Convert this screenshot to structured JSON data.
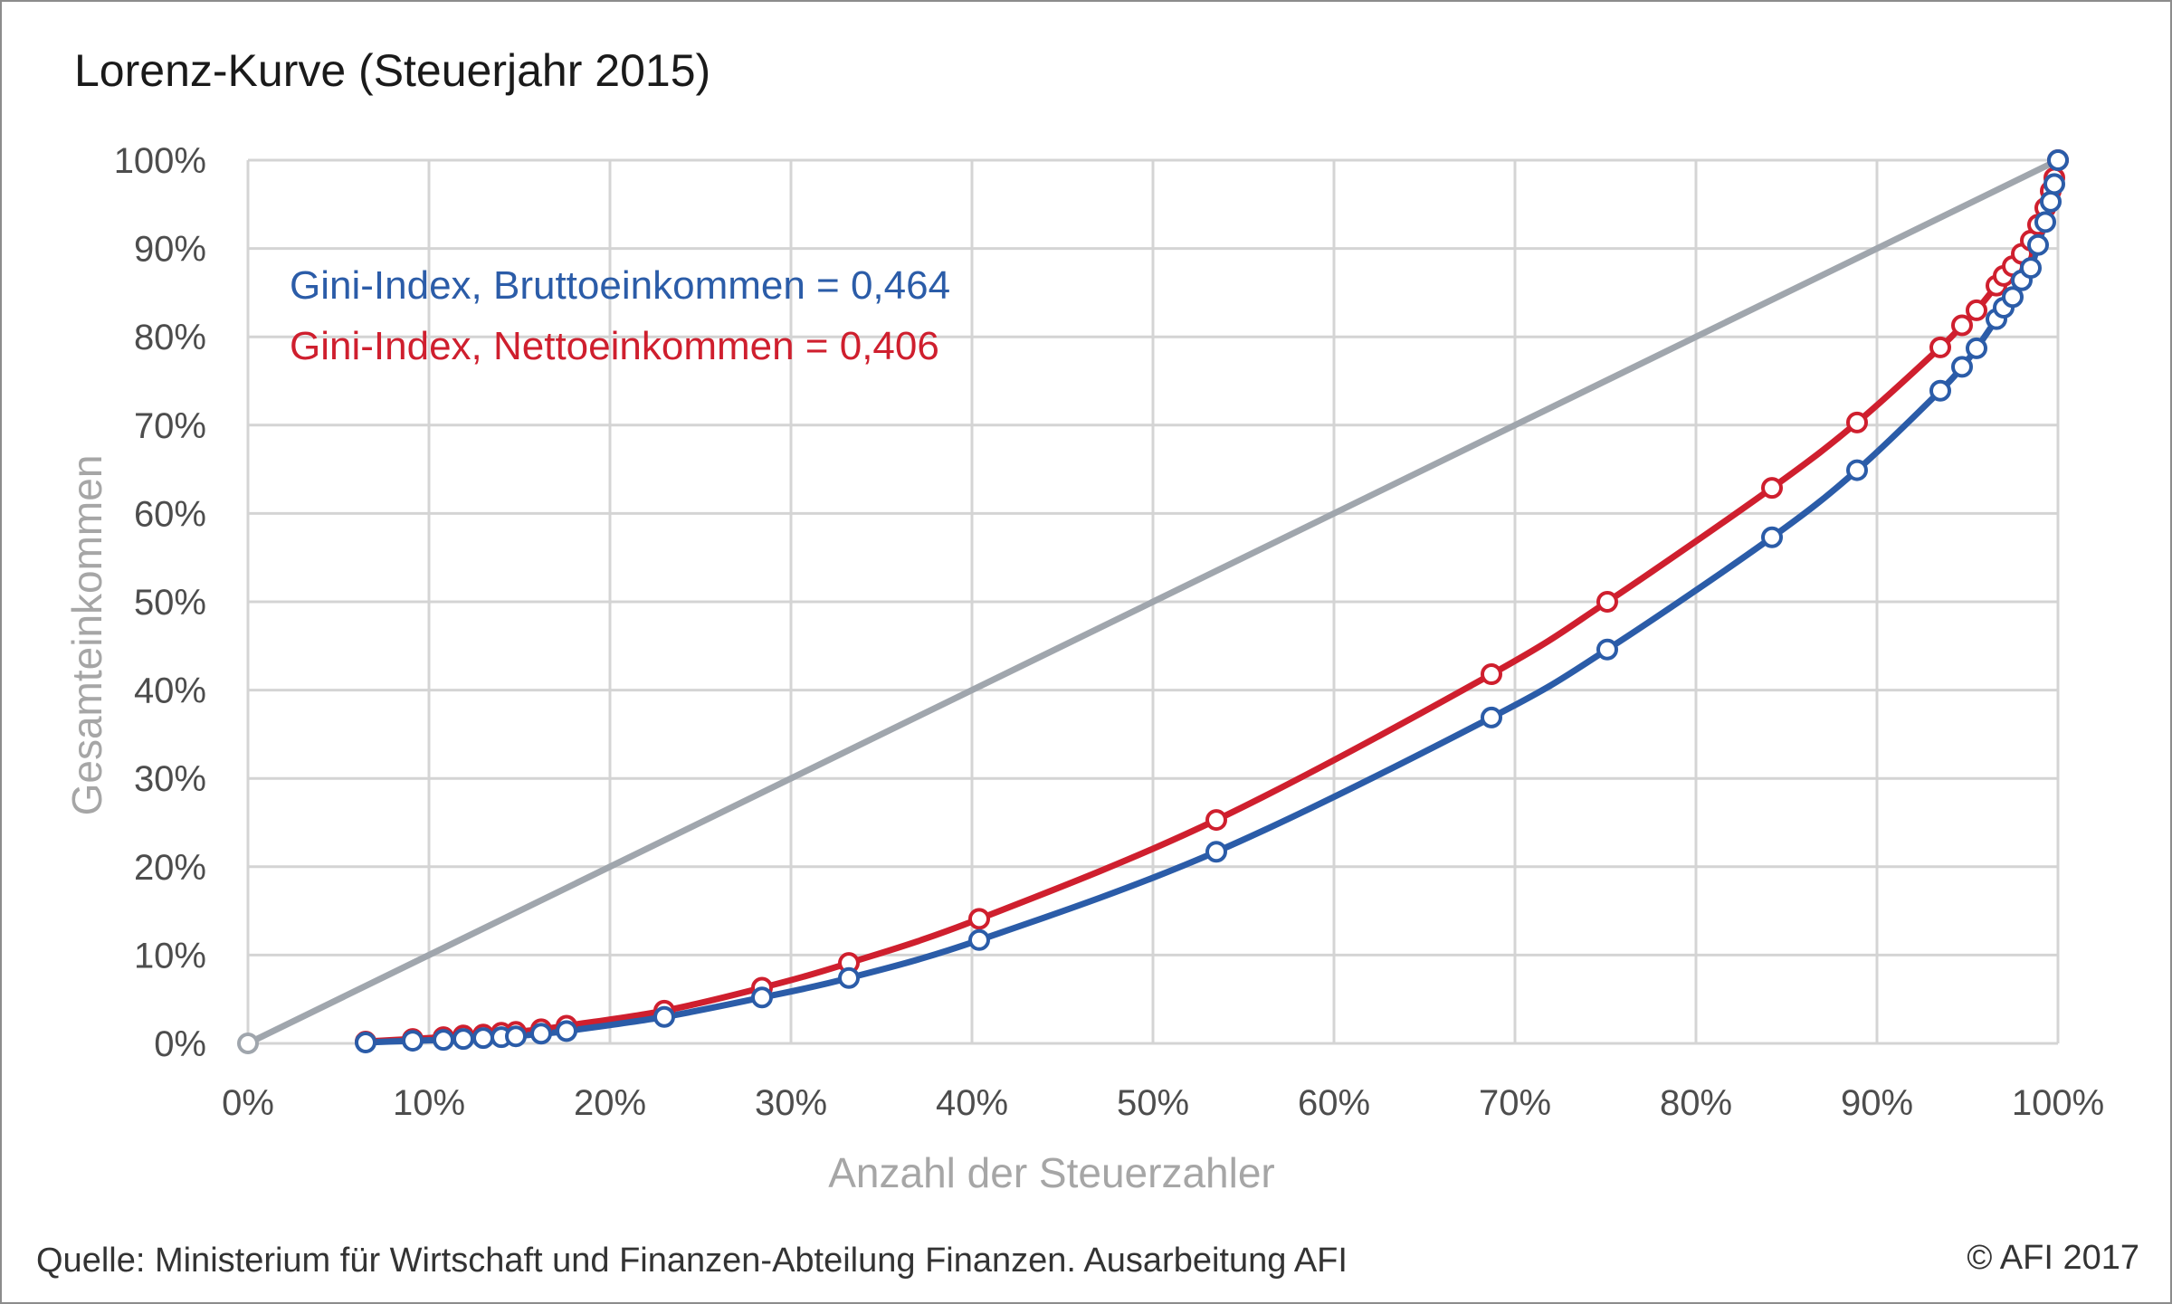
{
  "chart_data": {
    "type": "line",
    "title": "Lorenz-Kurve (Steuerjahr 2015)",
    "xlabel": "Anzahl der Steuerzahler",
    "ylabel": "Gesamteinkommen",
    "xlim": [
      0,
      100
    ],
    "ylim": [
      0,
      100
    ],
    "x_ticks": [
      "0%",
      "10%",
      "20%",
      "30%",
      "40%",
      "50%",
      "60%",
      "70%",
      "80%",
      "90%",
      "100%"
    ],
    "y_ticks": [
      "0%",
      "10%",
      "20%",
      "30%",
      "40%",
      "50%",
      "60%",
      "70%",
      "80%",
      "90%",
      "100%"
    ],
    "grid": true,
    "annotations": [
      {
        "text": "Gini-Index, Bruttoeinkommen = 0,464",
        "color": "#2b5ca8"
      },
      {
        "text": "Gini-Index, Nettoeinkommen = 0,406",
        "color": "#cf1f2e"
      }
    ],
    "series": [
      {
        "color": "#a0a6ad",
        "x": [
          0,
          100
        ],
        "y": [
          0,
          100
        ]
      },
      {
        "color": "#cf1f2e",
        "x": [
          6.5,
          9.1,
          10.8,
          11.9,
          13.0,
          14.0,
          14.8,
          16.2,
          17.6,
          23.0,
          28.4,
          33.2,
          40.4,
          53.5,
          68.7,
          75.1,
          84.2,
          88.9,
          93.5,
          94.7,
          95.5,
          96.6,
          97.0,
          97.5,
          98.0,
          98.5,
          98.9,
          99.3,
          99.6,
          99.8,
          100.0
        ],
        "y": [
          0.2,
          0.5,
          0.7,
          0.9,
          1.0,
          1.2,
          1.3,
          1.6,
          2.0,
          3.7,
          6.3,
          9.1,
          14.1,
          25.3,
          41.8,
          50.0,
          62.9,
          70.3,
          78.8,
          81.3,
          83.0,
          85.8,
          86.9,
          88.0,
          89.4,
          90.9,
          92.7,
          94.6,
          96.5,
          98.0,
          100.0
        ]
      },
      {
        "color": "#2b5ca8",
        "x": [
          6.5,
          9.1,
          10.8,
          11.9,
          13.0,
          14.0,
          14.8,
          16.2,
          17.6,
          23.0,
          28.4,
          33.2,
          40.4,
          53.5,
          68.7,
          75.1,
          84.2,
          88.9,
          93.5,
          94.7,
          95.5,
          96.6,
          97.0,
          97.5,
          98.0,
          98.5,
          98.9,
          99.3,
          99.6,
          99.8,
          100.0
        ],
        "y": [
          0.1,
          0.3,
          0.4,
          0.5,
          0.6,
          0.7,
          0.8,
          1.1,
          1.4,
          3.0,
          5.2,
          7.4,
          11.7,
          21.7,
          36.9,
          44.6,
          57.3,
          64.9,
          73.9,
          76.6,
          78.7,
          82.0,
          83.3,
          84.5,
          86.4,
          87.8,
          90.4,
          93.0,
          95.3,
          97.3,
          100.0
        ]
      }
    ]
  },
  "footer": {
    "source": "Quelle: Ministerium für Wirtschaft und Finanzen-Abteilung Finanzen. Ausarbeitung AFI",
    "copyright": "© AFI 2017"
  }
}
